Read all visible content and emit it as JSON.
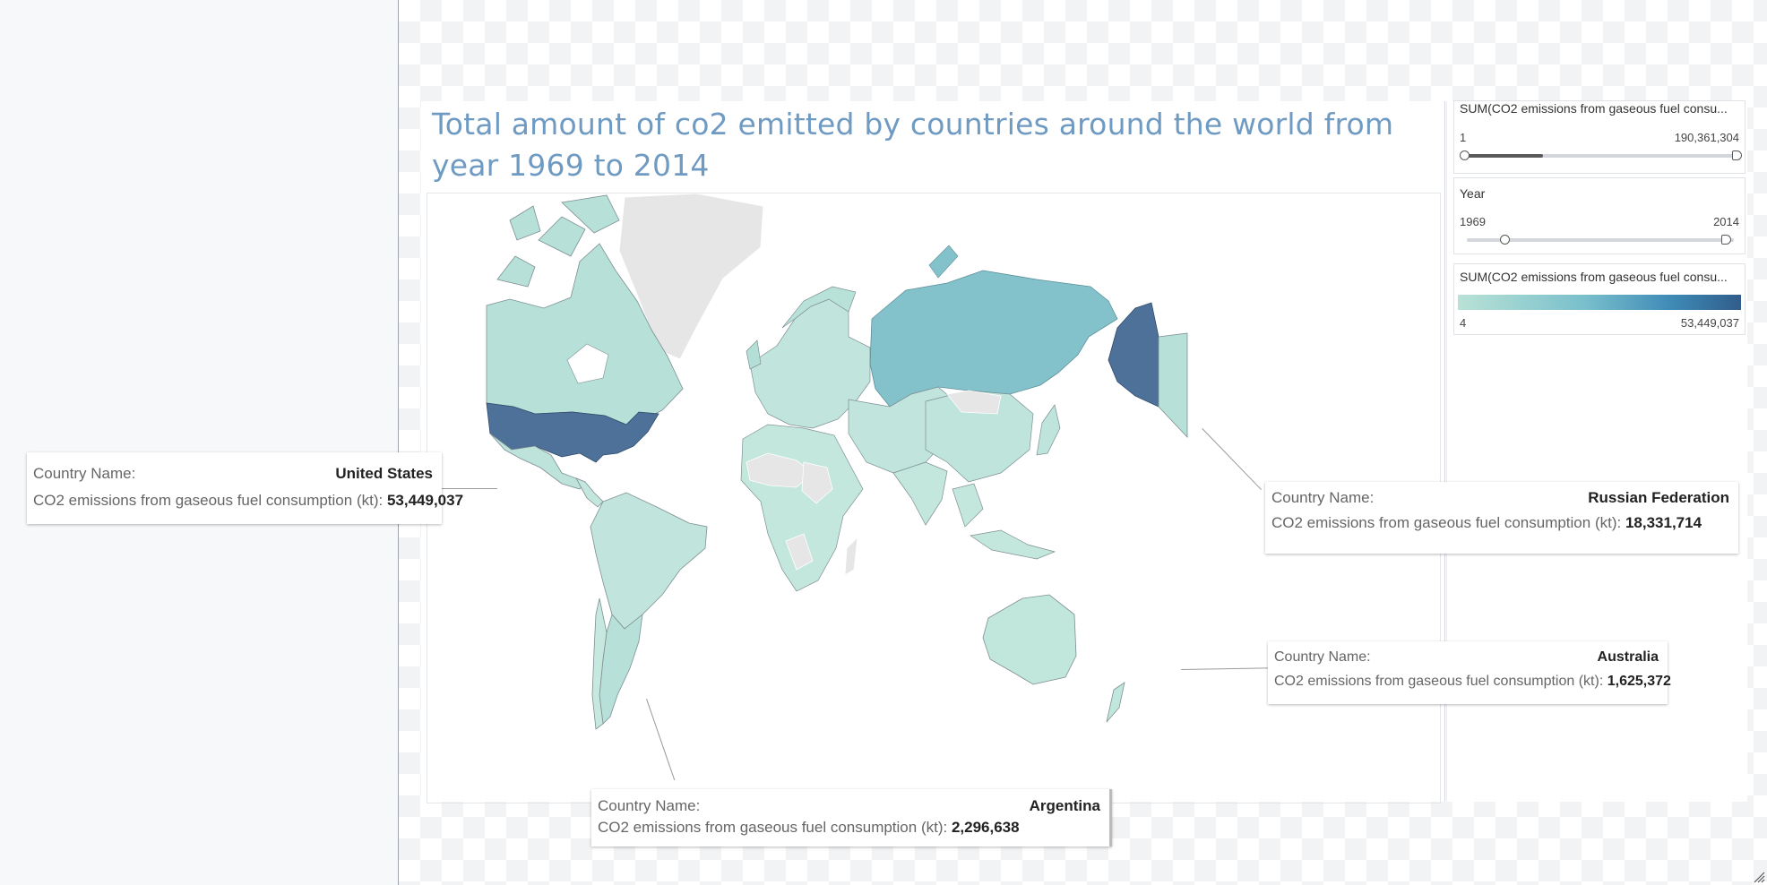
{
  "dashboard": {
    "title": "Total amount of co2 emitted by countries around the world from year 1969 to 2014"
  },
  "filters": {
    "emissions_range": {
      "title": "SUM(CO2 emissions from gaseous fuel consu...",
      "min_label": "1",
      "max_label": "190,361,304",
      "selected_fraction": [
        0.0,
        1.0
      ],
      "fill_fraction": 0.29
    },
    "year": {
      "title": "Year",
      "min_label": "1969",
      "max_label": "2014",
      "selected_years": [
        1969,
        2014
      ]
    },
    "color_legend": {
      "title": "SUM(CO2 emissions from gaseous fuel consu...",
      "min_label": "4",
      "max_label": "53,449,037",
      "colors": [
        "#b9e2d6",
        "#79bfcc",
        "#3f8bb7",
        "#315d8a"
      ]
    }
  },
  "map": {
    "no_data_color": "#e6e6e6",
    "shaded_countries": [
      {
        "name": "United States",
        "value": 53449037,
        "color": "#4e7199"
      },
      {
        "name": "Russian Federation",
        "value": 18331714,
        "color": "#84c2cb"
      },
      {
        "name": "Argentina",
        "value": 2296638,
        "color": "#b7e0d8"
      },
      {
        "name": "Australia",
        "value": 1625372,
        "color": "#c1e6dc"
      }
    ]
  },
  "tooltips": [
    {
      "country_label": "Country Name:",
      "country": "United States",
      "metric_label": "CO2 emissions from gaseous fuel consumption (kt):",
      "value": "53,449,037"
    },
    {
      "country_label": "Country Name:",
      "country": "Russian Federation",
      "metric_label": "CO2 emissions from gaseous fuel consumption (kt):",
      "value": "18,331,714"
    },
    {
      "country_label": "Country Name:",
      "country": "Australia",
      "metric_label": "CO2 emissions from gaseous fuel consumption (kt):",
      "value": "1,625,372"
    },
    {
      "country_label": "Country Name:",
      "country": "Argentina",
      "metric_label": "CO2 emissions from gaseous fuel consumption (kt):",
      "value": "2,296,638"
    }
  ]
}
